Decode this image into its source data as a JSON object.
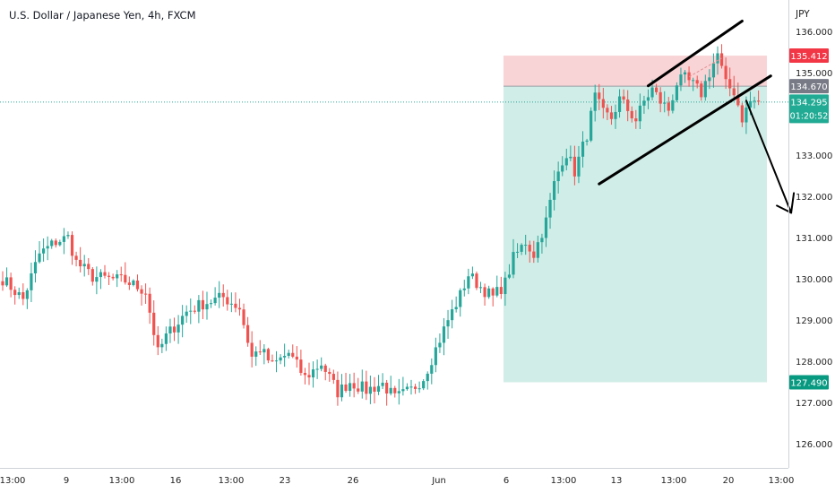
{
  "header": {
    "title": "U.S. Dollar / Japanese Yen, 4h, FXCM"
  },
  "colors": {
    "up": "#26a69a",
    "down": "#ef5350",
    "stop_zone": "#f9d4d6",
    "target_zone": "#d1ede7",
    "current_price_line": "#26a69a",
    "entry_label": "#787b86",
    "stop_label": "#f23645",
    "target_label": "#089981",
    "current_label": "#22ab94",
    "annotation": "#000000"
  },
  "chart_data": {
    "type": "candlestick",
    "title": "U.S. Dollar / Japanese Yen, 4h, FXCM",
    "y_unit_label": "JPY",
    "ylim": [
      125.55,
      136.4
    ],
    "y_ticks": [
      "136.000",
      "135.000",
      "133.000",
      "132.000",
      "131.000",
      "130.000",
      "129.000",
      "128.000",
      "127.000",
      "126.000"
    ],
    "x_ticks": [
      "13:00",
      "9",
      "13:00",
      "16",
      "13:00",
      "23",
      "26",
      "Jun",
      "6",
      "13:00",
      "13",
      "13:00",
      "20",
      "13:00"
    ],
    "grid": false,
    "price_labels": {
      "stop": "135.412",
      "entry": "134.670",
      "current": "134.295",
      "countdown": "01:20:52",
      "target": "127.490"
    },
    "position": {
      "side": "short",
      "entry": 134.67,
      "stop": 135.412,
      "target": 127.49
    },
    "anchors": [
      [
        0,
        130.0
      ],
      [
        5,
        129.5
      ],
      [
        9,
        130.6
      ],
      [
        13,
        130.9
      ],
      [
        16,
        131.0
      ],
      [
        18,
        130.4
      ],
      [
        22,
        130.05
      ],
      [
        26,
        130.0
      ],
      [
        30,
        129.95
      ],
      [
        35,
        129.7
      ],
      [
        38,
        128.2
      ],
      [
        40,
        128.6
      ],
      [
        45,
        129.2
      ],
      [
        49,
        129.4
      ],
      [
        54,
        129.55
      ],
      [
        58,
        129.3
      ],
      [
        61,
        128.1
      ],
      [
        63,
        128.3
      ],
      [
        66,
        127.9
      ],
      [
        70,
        128.2
      ],
      [
        74,
        127.6
      ],
      [
        78,
        127.95
      ],
      [
        82,
        127.25
      ],
      [
        85,
        127.5
      ],
      [
        89,
        127.3
      ],
      [
        93,
        127.45
      ],
      [
        96,
        127.1
      ],
      [
        100,
        127.3
      ],
      [
        103,
        127.6
      ],
      [
        106,
        128.3
      ],
      [
        109,
        129.0
      ],
      [
        112,
        129.6
      ],
      [
        114,
        130.1
      ],
      [
        117,
        129.8
      ],
      [
        120,
        129.55
      ],
      [
        123,
        129.9
      ],
      [
        125,
        130.5
      ],
      [
        128,
        130.9
      ],
      [
        130,
        130.6
      ],
      [
        133,
        131.4
      ],
      [
        135,
        132.3
      ],
      [
        137,
        132.9
      ],
      [
        138,
        133.05
      ],
      [
        140,
        132.6
      ],
      [
        143,
        133.5
      ],
      [
        145,
        134.4
      ],
      [
        147,
        134.0
      ],
      [
        149,
        133.9
      ],
      [
        151,
        134.35
      ],
      [
        153,
        134.1
      ],
      [
        155,
        133.85
      ],
      [
        157,
        134.3
      ],
      [
        159,
        134.6
      ],
      [
        161,
        134.3
      ],
      [
        163,
        134.1
      ],
      [
        165,
        134.75
      ],
      [
        167,
        134.85
      ],
      [
        169,
        134.7
      ],
      [
        171,
        134.5
      ],
      [
        173,
        135.0
      ],
      [
        175,
        135.45
      ],
      [
        177,
        134.7
      ],
      [
        179,
        134.55
      ],
      [
        181,
        133.9
      ],
      [
        183,
        134.3
      ],
      [
        185,
        134.3
      ]
    ],
    "annotations": {
      "channel_upper": [
        [
          134.68,
          158
        ],
        [
          136.25,
          181
        ]
      ],
      "channel_lower": [
        [
          132.3,
          146
        ],
        [
          134.92,
          188
        ]
      ],
      "arrow": [
        [
          134.32,
          182
        ],
        [
          131.6,
          193
        ]
      ]
    }
  }
}
